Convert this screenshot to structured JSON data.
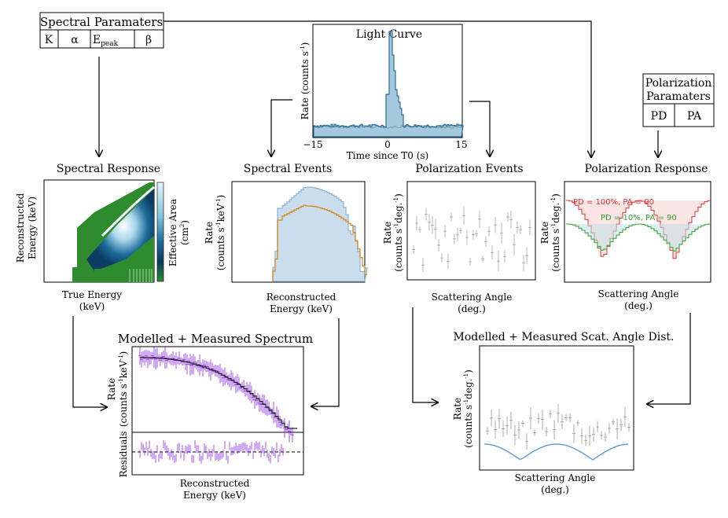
{
  "spectral_params": {
    "title": "Spectral Paramaters",
    "cells": [
      "K",
      "α",
      "E",
      "peak",
      "β"
    ]
  },
  "polarization_params": {
    "title_line1": "Polarization",
    "title_line2": "Paramaters",
    "cells": [
      "PD",
      "PA"
    ]
  },
  "light_curve": {
    "title": "Light Curve",
    "ylabel": "Rate (counts s",
    "ylabel_sup": "-1",
    "ylabel_end": ")",
    "xlabel": "Time since T0 (s)",
    "ticks": [
      "−15",
      "0",
      "15"
    ]
  },
  "spectral_response": {
    "title": "Spectral Response",
    "ylabel_line1": "Reconstructed",
    "ylabel_line2": "Energy (keV)",
    "xlabel_line1": "True Energy",
    "xlabel_line2": "(keV)",
    "colorbar_line1": "Effective Area",
    "colorbar_line2": "(cm",
    "colorbar_sup": "2",
    "colorbar_end": ")"
  },
  "spectral_events": {
    "title": "Spectral Events",
    "ylabel_line1": "Rate",
    "ylabel_line2": "(counts s",
    "ylabel_sup": "-1",
    "ylabel_mid": "keV",
    "ylabel_sup2": "-1",
    "ylabel_end": ")",
    "xlabel_line1": "Reconstructed",
    "xlabel_line2": "Energy (keV)"
  },
  "polarization_events": {
    "title": "Polarization Events",
    "ylabel_line1": "Rate",
    "ylabel_line2": "(counts s",
    "ylabel_sup": "-1",
    "ylabel_mid": "deg.",
    "ylabel_sup2": "-1",
    "ylabel_end": ")",
    "xlabel_line1": "Scattering Angle",
    "xlabel_line2": "(deg.)"
  },
  "polarization_response": {
    "title": "Polarization Response",
    "ylabel_line1": "Rate",
    "ylabel_line2": "(counts s",
    "ylabel_sup": "-1",
    "ylabel_mid": "deg.",
    "ylabel_sup2": "-1",
    "ylabel_end": ")",
    "xlabel_line1": "Scattering Angle",
    "xlabel_line2": "(deg.)",
    "legend1": "PD = 100%, PA = 90",
    "legend2": "PD = 10%, PA = 90"
  },
  "modelled_spectrum": {
    "title": "Modelled + Measured Spectrum",
    "ylabel_line1": "Rate",
    "ylabel_line2": "(counts s",
    "ylabel_sup": "-1",
    "ylabel_mid": "keV",
    "ylabel_sup2": "-1",
    "ylabel_end": ")",
    "residuals_label": "Residuals",
    "xlabel_line1": "Reconstructed",
    "xlabel_line2": "Energy (keV)"
  },
  "modelled_scat": {
    "title": "Modelled + Measured Scat. Angle Dist.",
    "ylabel_line1": "Rate",
    "ylabel_line2": "(counts s",
    "ylabel_sup": "-1",
    "ylabel_mid": "deg.",
    "ylabel_sup2": "-1",
    "ylabel_end": ")",
    "xlabel_line1": "Scattering Angle",
    "xlabel_line2": "(deg.)"
  },
  "colors": {
    "lightcurve": "#2a6e9a",
    "lightcurve_bg": "#6a9e6a",
    "spec_blue": "#8fb8d8",
    "spec_orange": "#d88a1e",
    "purple": "#8a2be2",
    "dark": "#222222",
    "red": "#e03030",
    "green": "#30a030",
    "cyan_model": "#6aa0d8",
    "gray": "#999999",
    "resp_green": "#2e8b2e",
    "resp_blue": "#1f5f8f"
  }
}
